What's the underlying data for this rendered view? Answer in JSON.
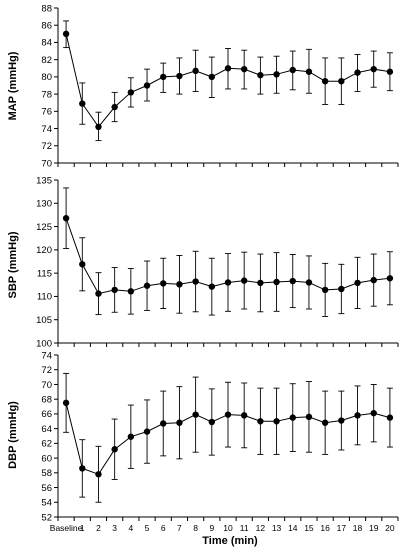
{
  "chart_data": [
    {
      "type": "line",
      "ylabel": "MAP (mmHg)",
      "ylim": [
        70,
        88
      ],
      "ytick_step": 2,
      "grid": false,
      "categories": [
        "Baseline",
        "1",
        "2",
        "3",
        "4",
        "5",
        "6",
        "7",
        "8",
        "9",
        "10",
        "11",
        "12",
        "13",
        "14",
        "15",
        "16",
        "17",
        "18",
        "19",
        "20"
      ],
      "series": [
        {
          "values": [
            85.0,
            76.9,
            74.2,
            76.5,
            78.2,
            79.0,
            80.0,
            80.1,
            80.7,
            80.0,
            81.0,
            80.9,
            80.2,
            80.3,
            80.8,
            80.6,
            79.5,
            79.5,
            80.5,
            80.9,
            80.6
          ],
          "error_upper": [
            86.5,
            79.3,
            75.9,
            78.2,
            79.9,
            80.9,
            81.6,
            82.2,
            83.1,
            82.3,
            83.3,
            83.1,
            82.3,
            82.4,
            83.0,
            83.2,
            82.2,
            82.2,
            82.6,
            83.0,
            82.8
          ],
          "error_lower": [
            83.4,
            74.5,
            72.6,
            74.8,
            76.5,
            77.2,
            78.2,
            78.0,
            78.3,
            77.6,
            78.6,
            78.6,
            78.0,
            78.1,
            78.5,
            78.1,
            76.8,
            76.8,
            78.3,
            78.8,
            78.4
          ]
        }
      ]
    },
    {
      "type": "line",
      "ylabel": "SBP (mmHg)",
      "ylim": [
        100,
        135
      ],
      "ytick_step": 5,
      "grid": false,
      "categories": [
        "Baseline",
        "1",
        "2",
        "3",
        "4",
        "5",
        "6",
        "7",
        "8",
        "9",
        "10",
        "11",
        "12",
        "13",
        "14",
        "15",
        "16",
        "17",
        "18",
        "19",
        "20"
      ],
      "series": [
        {
          "values": [
            126.8,
            116.9,
            110.6,
            111.4,
            111.1,
            112.3,
            112.8,
            112.6,
            113.2,
            112.1,
            113.0,
            113.4,
            112.9,
            113.1,
            113.3,
            113.0,
            111.4,
            111.6,
            112.9,
            113.5,
            113.9
          ],
          "error_upper": [
            133.3,
            122.6,
            115.1,
            116.2,
            116.0,
            117.6,
            118.2,
            118.8,
            119.7,
            118.2,
            119.2,
            119.5,
            119.1,
            119.4,
            119.0,
            118.7,
            117.1,
            116.9,
            118.4,
            119.1,
            119.6
          ],
          "error_lower": [
            120.3,
            111.2,
            106.1,
            106.6,
            106.2,
            107.0,
            107.4,
            106.4,
            106.7,
            106.0,
            106.8,
            107.3,
            106.7,
            106.8,
            107.6,
            107.3,
            105.7,
            106.3,
            107.4,
            107.9,
            108.2
          ]
        }
      ]
    },
    {
      "type": "line",
      "ylabel": "DBP (mmHg)",
      "xlabel": "Time (min)",
      "ylim": [
        52,
        74
      ],
      "ytick_step": 2,
      "grid": false,
      "categories": [
        "Baseline",
        "1",
        "2",
        "3",
        "4",
        "5",
        "6",
        "7",
        "8",
        "9",
        "10",
        "11",
        "12",
        "13",
        "14",
        "15",
        "16",
        "17",
        "18",
        "19",
        "20"
      ],
      "series": [
        {
          "values": [
            67.5,
            58.6,
            57.8,
            61.2,
            62.9,
            63.6,
            64.7,
            64.8,
            65.9,
            64.9,
            65.9,
            65.8,
            65.0,
            65.0,
            65.5,
            65.6,
            64.8,
            65.1,
            65.8,
            66.1,
            65.5
          ],
          "error_upper": [
            71.5,
            62.5,
            61.6,
            65.3,
            67.2,
            67.9,
            69.1,
            69.7,
            71.0,
            69.4,
            70.3,
            70.2,
            69.5,
            69.5,
            70.1,
            70.4,
            69.1,
            69.1,
            69.8,
            70.0,
            69.5
          ],
          "error_lower": [
            63.5,
            54.7,
            54.0,
            57.1,
            58.6,
            59.3,
            60.3,
            59.9,
            60.8,
            60.4,
            61.5,
            61.4,
            60.5,
            60.5,
            60.9,
            60.8,
            60.5,
            61.1,
            61.8,
            62.2,
            61.5
          ]
        }
      ]
    }
  ]
}
